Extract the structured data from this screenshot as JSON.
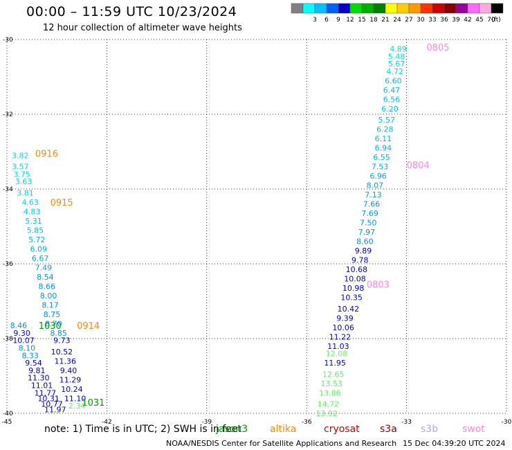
{
  "header": {
    "title": "00:00 – 11:59 UTC 10/23/2024",
    "subtitle": "12 hour collection of altimeter wave heights"
  },
  "scale": {
    "unit_label": "(ft)",
    "bins": [
      {
        "label": "",
        "color": "#808080"
      },
      {
        "label": "3",
        "color": "#00ffff"
      },
      {
        "label": "6",
        "color": "#00c0ff"
      },
      {
        "label": "9",
        "color": "#0060ff"
      },
      {
        "label": "12",
        "color": "#0000cc"
      },
      {
        "label": "15",
        "color": "#00dd00"
      },
      {
        "label": "18",
        "color": "#00b000"
      },
      {
        "label": "21",
        "color": "#008000"
      },
      {
        "label": "24",
        "color": "#ffff00"
      },
      {
        "label": "27",
        "color": "#ffcc00"
      },
      {
        "label": "30",
        "color": "#ff9900"
      },
      {
        "label": "33",
        "color": "#ff3300"
      },
      {
        "label": "36",
        "color": "#cc0000"
      },
      {
        "label": "39",
        "color": "#880000"
      },
      {
        "label": "42",
        "color": "#990099"
      },
      {
        "label": "45",
        "color": "#ff66ff"
      },
      {
        "label": "70",
        "color": "#ffaadd"
      },
      {
        "label": "",
        "color": "#000000"
      }
    ]
  },
  "map": {
    "lon_range": [
      -45,
      -30
    ],
    "lat_range": [
      -40,
      -30
    ],
    "lon_ticks": [
      "-45",
      "-42",
      "-39",
      "-36",
      "-33",
      "-30"
    ],
    "lat_ticks": [
      "-30",
      "-32",
      "-34",
      "-36",
      "-38",
      "-40"
    ],
    "tracks": [
      {
        "name": "west",
        "color_default": "#00c8e8",
        "points": [
          {
            "lon": -44.6,
            "lat": -33.1,
            "v": "3.82",
            "c": "#00d8e8"
          },
          {
            "lon": -44.6,
            "lat": -33.4,
            "v": "3.57",
            "c": "#00d8e8"
          },
          {
            "lon": -44.55,
            "lat": -33.6,
            "v": "3.75",
            "c": "#00d8e8"
          },
          {
            "lon": -44.5,
            "lat": -33.8,
            "v": "3.63",
            "c": "#00d8e8"
          },
          {
            "lon": -44.45,
            "lat": -34.1,
            "v": "3.81",
            "c": "#00d8e8"
          },
          {
            "lon": -44.3,
            "lat": -34.35,
            "v": "4.63",
            "c": "#00d8e8"
          },
          {
            "lon": -44.25,
            "lat": -34.6,
            "v": "4.83",
            "c": "#00c8f0"
          },
          {
            "lon": -44.2,
            "lat": -34.85,
            "v": "5.31",
            "c": "#00c0f0"
          },
          {
            "lon": -44.15,
            "lat": -35.1,
            "v": "5.85",
            "c": "#00c0f0"
          },
          {
            "lon": -44.1,
            "lat": -35.35,
            "v": "5.72",
            "c": "#00b8f0"
          },
          {
            "lon": -44.05,
            "lat": -35.6,
            "v": "6.09",
            "c": "#00b0f0"
          },
          {
            "lon": -44.0,
            "lat": -35.85,
            "v": "6.67",
            "c": "#00a8f0"
          },
          {
            "lon": -43.9,
            "lat": -36.1,
            "v": "7.49",
            "c": "#00a0f0"
          },
          {
            "lon": -43.85,
            "lat": -36.35,
            "v": "8.54",
            "c": "#0090f0"
          },
          {
            "lon": -43.8,
            "lat": -36.6,
            "v": "8.66",
            "c": "#0090f0"
          },
          {
            "lon": -43.75,
            "lat": -36.85,
            "v": "8.00",
            "c": "#0090f0"
          },
          {
            "lon": -43.7,
            "lat": -37.1,
            "v": "8.17",
            "c": "#0090f0"
          },
          {
            "lon": -43.65,
            "lat": -37.35,
            "v": "8.75",
            "c": "#0090f0"
          },
          {
            "lon": -43.6,
            "lat": -37.6,
            "v": "8.70",
            "c": "#0090f0"
          },
          {
            "lon": -43.45,
            "lat": -37.85,
            "v": "8.85",
            "c": "#0090f0"
          },
          {
            "lon": -43.35,
            "lat": -38.05,
            "v": "9.73",
            "c": "#0000cc"
          },
          {
            "lon": -43.35,
            "lat": -38.35,
            "v": "10.52",
            "c": "#0000cc"
          },
          {
            "lon": -43.25,
            "lat": -38.6,
            "v": "11.36",
            "c": "#0000cc"
          },
          {
            "lon": -43.15,
            "lat": -38.85,
            "v": "9.40",
            "c": "#0000cc"
          },
          {
            "lon": -43.1,
            "lat": -39.1,
            "v": "11.29",
            "c": "#0000cc"
          },
          {
            "lon": -43.05,
            "lat": -39.35,
            "v": "10.24",
            "c": "#0000cc"
          },
          {
            "lon": -42.95,
            "lat": -39.6,
            "v": "11.10",
            "c": "#0000cc"
          },
          {
            "lon": -42.9,
            "lat": -39.8,
            "v": "2.34",
            "c": "#66ee66"
          }
        ]
      },
      {
        "name": "west2",
        "color_default": "#0000cc",
        "points": [
          {
            "lon": -44.65,
            "lat": -37.65,
            "v": "8.46",
            "c": "#0090f0"
          },
          {
            "lon": -44.55,
            "lat": -37.85,
            "v": "9.30",
            "c": "#0000cc"
          },
          {
            "lon": -44.5,
            "lat": -38.05,
            "v": "10.07",
            "c": "#0000cc"
          },
          {
            "lon": -44.4,
            "lat": -38.25,
            "v": "8.10",
            "c": "#0090f0"
          },
          {
            "lon": -44.3,
            "lat": -38.45,
            "v": "8.33",
            "c": "#0090f0"
          },
          {
            "lon": -44.2,
            "lat": -38.65,
            "v": "9.54",
            "c": "#0000cc"
          },
          {
            "lon": -44.1,
            "lat": -38.85,
            "v": "9.81",
            "c": "#0000cc"
          },
          {
            "lon": -44.05,
            "lat": -39.05,
            "v": "11.30",
            "c": "#0000cc"
          },
          {
            "lon": -43.95,
            "lat": -39.25,
            "v": "11.01",
            "c": "#0000cc"
          },
          {
            "lon": -43.85,
            "lat": -39.45,
            "v": "11.77",
            "c": "#0000cc"
          },
          {
            "lon": -43.75,
            "lat": -39.6,
            "v": "10.31",
            "c": "#0000cc"
          },
          {
            "lon": -43.65,
            "lat": -39.75,
            "v": "10.77",
            "c": "#0000cc"
          },
          {
            "lon": -43.55,
            "lat": -39.9,
            "v": "11.97",
            "c": "#0000cc"
          }
        ]
      },
      {
        "name": "east",
        "color_default": "#00d8e8",
        "points": [
          {
            "lon": -33.25,
            "lat": -30.25,
            "v": "4.89",
            "c": "#00d8e8"
          },
          {
            "lon": -33.3,
            "lat": -30.45,
            "v": "5.48",
            "c": "#00d8e8"
          },
          {
            "lon": -33.3,
            "lat": -30.65,
            "v": "5.67",
            "c": "#00d8e8"
          },
          {
            "lon": -33.35,
            "lat": -30.85,
            "v": "4.72",
            "c": "#00d8e8"
          },
          {
            "lon": -33.4,
            "lat": -31.1,
            "v": "6.60",
            "c": "#00c0f0"
          },
          {
            "lon": -33.45,
            "lat": -31.35,
            "v": "6.47",
            "c": "#00c0f0"
          },
          {
            "lon": -33.45,
            "lat": -31.6,
            "v": "6.56",
            "c": "#00c0f0"
          },
          {
            "lon": -33.5,
            "lat": -31.85,
            "v": "6.20",
            "c": "#00c0f0"
          },
          {
            "lon": -33.6,
            "lat": -32.15,
            "v": "5.57",
            "c": "#00c0f0"
          },
          {
            "lon": -33.65,
            "lat": -32.4,
            "v": "6.28",
            "c": "#00c0f0"
          },
          {
            "lon": -33.7,
            "lat": -32.65,
            "v": "6.11",
            "c": "#00c0f0"
          },
          {
            "lon": -33.7,
            "lat": -32.9,
            "v": "6.94",
            "c": "#00b0f0"
          },
          {
            "lon": -33.75,
            "lat": -33.15,
            "v": "6.55",
            "c": "#00b0f0"
          },
          {
            "lon": -33.8,
            "lat": -33.4,
            "v": "7.53",
            "c": "#00a8f0"
          },
          {
            "lon": -33.85,
            "lat": -33.65,
            "v": "6.96",
            "c": "#00a8f0"
          },
          {
            "lon": -33.95,
            "lat": -33.9,
            "v": "8.07",
            "c": "#00a0f0"
          },
          {
            "lon": -34.0,
            "lat": -34.15,
            "v": "7.13",
            "c": "#00a0f0"
          },
          {
            "lon": -34.05,
            "lat": -34.4,
            "v": "7.66",
            "c": "#0098f0"
          },
          {
            "lon": -34.1,
            "lat": -34.65,
            "v": "7.69",
            "c": "#0098f0"
          },
          {
            "lon": -34.15,
            "lat": -34.9,
            "v": "7.50",
            "c": "#0098f0"
          },
          {
            "lon": -34.2,
            "lat": -35.15,
            "v": "7.97",
            "c": "#0090f0"
          },
          {
            "lon": -34.25,
            "lat": -35.4,
            "v": "8.60",
            "c": "#0090f0"
          },
          {
            "lon": -34.3,
            "lat": -35.65,
            "v": "9.89",
            "c": "#0000cc"
          },
          {
            "lon": -34.4,
            "lat": -35.9,
            "v": "9.78",
            "c": "#0000cc"
          },
          {
            "lon": -34.5,
            "lat": -36.15,
            "v": "10.68",
            "c": "#0000cc"
          },
          {
            "lon": -34.55,
            "lat": -36.4,
            "v": "10.08",
            "c": "#0000cc"
          },
          {
            "lon": -34.6,
            "lat": -36.65,
            "v": "10.98",
            "c": "#0000cc"
          },
          {
            "lon": -34.65,
            "lat": -36.9,
            "v": "10.35",
            "c": "#0000cc"
          },
          {
            "lon": -34.75,
            "lat": -37.2,
            "v": "10.42",
            "c": "#0000cc"
          },
          {
            "lon": -34.85,
            "lat": -37.45,
            "v": "9.39",
            "c": "#0000cc"
          },
          {
            "lon": -34.9,
            "lat": -37.7,
            "v": "10.06",
            "c": "#0000cc"
          },
          {
            "lon": -35.0,
            "lat": -37.95,
            "v": "11.22",
            "c": "#0000cc"
          },
          {
            "lon": -35.05,
            "lat": -38.2,
            "v": "11.03",
            "c": "#0000cc"
          },
          {
            "lon": -35.1,
            "lat": -38.4,
            "v": "12.08",
            "c": "#66ee66"
          },
          {
            "lon": -35.15,
            "lat": -38.65,
            "v": "11.95",
            "c": "#0000cc"
          },
          {
            "lon": -35.2,
            "lat": -38.95,
            "v": "12.65",
            "c": "#66ee66"
          },
          {
            "lon": -35.25,
            "lat": -39.2,
            "v": "13.53",
            "c": "#66ee66"
          },
          {
            "lon": -35.3,
            "lat": -39.45,
            "v": "13.86",
            "c": "#66ee66"
          },
          {
            "lon": -35.35,
            "lat": -39.75,
            "v": "14.72",
            "c": "#66ee66"
          },
          {
            "lon": -35.4,
            "lat": -40.0,
            "v": "13.92",
            "c": "#66ee66"
          }
        ]
      }
    ],
    "time_labels": [
      {
        "lon": -32.4,
        "lat": -30.2,
        "t": "0805",
        "c": "#ff88dd"
      },
      {
        "lon": -33.0,
        "lat": -33.35,
        "t": "0804",
        "c": "#ff88dd"
      },
      {
        "lon": -34.2,
        "lat": -36.55,
        "t": "0803",
        "c": "#ff88dd"
      },
      {
        "lon": -44.15,
        "lat": -33.05,
        "t": "0916",
        "c": "#ff8800"
      },
      {
        "lon": -43.7,
        "lat": -34.35,
        "t": "0915",
        "c": "#ff8800"
      },
      {
        "lon": -42.9,
        "lat": -37.65,
        "t": "0914",
        "c": "#ff8800"
      },
      {
        "lon": -44.05,
        "lat": -37.65,
        "t": "1030",
        "c": "#009900"
      },
      {
        "lon": -42.75,
        "lat": -39.7,
        "t": "1031",
        "c": "#009900"
      }
    ]
  },
  "footer": {
    "note": "note:  1) Time is in UTC; 2) SWH is in feet",
    "satellites": [
      {
        "name": "jason3",
        "color": "#009900"
      },
      {
        "name": "altika",
        "color": "#ff8800"
      },
      {
        "name": "cryosat",
        "color": "#cc0000"
      },
      {
        "name": "s3a",
        "color": "#880000"
      },
      {
        "name": "s3b",
        "color": "#aaaaee"
      },
      {
        "name": "swot",
        "color": "#ff88dd"
      }
    ],
    "credit": "NOAA/NESDIS Center for Satellite Applications and Research",
    "generated": "15 Dec 04:39:20 UTC 2024"
  }
}
